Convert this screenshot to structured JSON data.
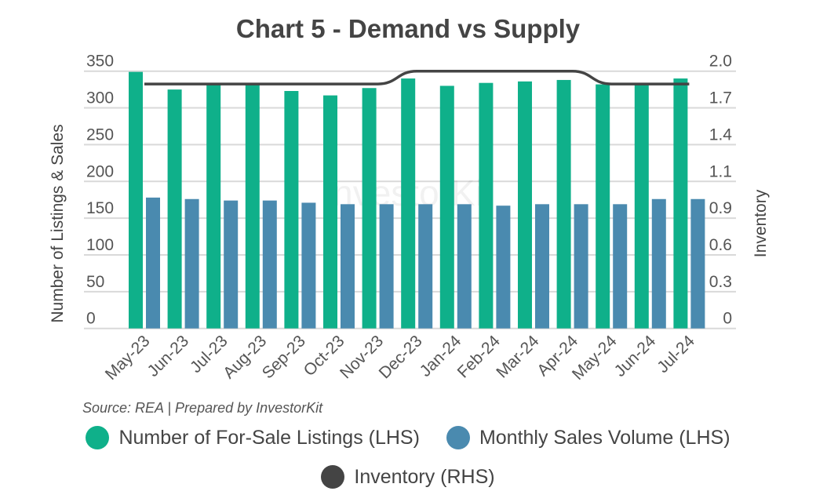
{
  "chart_data": {
    "type": "bar",
    "title": "Chart 5 - Demand vs Supply",
    "ylabel": "Number of Listings & Sales",
    "y2label": "Inventory",
    "ylim": [
      0,
      350
    ],
    "y2lim": [
      0,
      2.0
    ],
    "yticks": [
      "0",
      "50",
      "100",
      "150",
      "200",
      "250",
      "300",
      "350"
    ],
    "y2ticks": [
      "0",
      "0.3",
      "0.6",
      "0.9",
      "1.1",
      "1.4",
      "1.7",
      "2.0"
    ],
    "grid": true,
    "categories": [
      "May-23",
      "Jun-23",
      "Jul-23",
      "Aug-23",
      "Sep-23",
      "Oct-23",
      "Nov-23",
      "Dec-23",
      "Jan-24",
      "Feb-24",
      "Mar-24",
      "Apr-24",
      "May-24",
      "Jun-24",
      "Jul-24"
    ],
    "series": [
      {
        "name": "Number of For-Sale Listings (LHS)",
        "type": "bar",
        "axis": "left",
        "color": "#0fb08a",
        "values": [
          349,
          325,
          332,
          332,
          323,
          317,
          327,
          340,
          330,
          334,
          336,
          338,
          332,
          332,
          340
        ]
      },
      {
        "name": "Monthly Sales Volume (LHS)",
        "type": "bar",
        "axis": "left",
        "color": "#4a8aaf",
        "values": [
          178,
          176,
          174,
          174,
          171,
          169,
          169,
          169,
          169,
          167,
          169,
          169,
          169,
          176,
          176
        ]
      },
      {
        "name": "Inventory (RHS)",
        "type": "line",
        "axis": "right",
        "color": "#444444",
        "values": [
          1.9,
          1.9,
          1.9,
          1.9,
          1.9,
          1.9,
          1.9,
          2.0,
          2.0,
          2.0,
          2.0,
          2.0,
          1.9,
          1.9,
          1.9
        ]
      }
    ],
    "legend": "bottom",
    "source": "Source: REA | Prepared by InvestorKit",
    "watermark": "InvestorKit"
  }
}
